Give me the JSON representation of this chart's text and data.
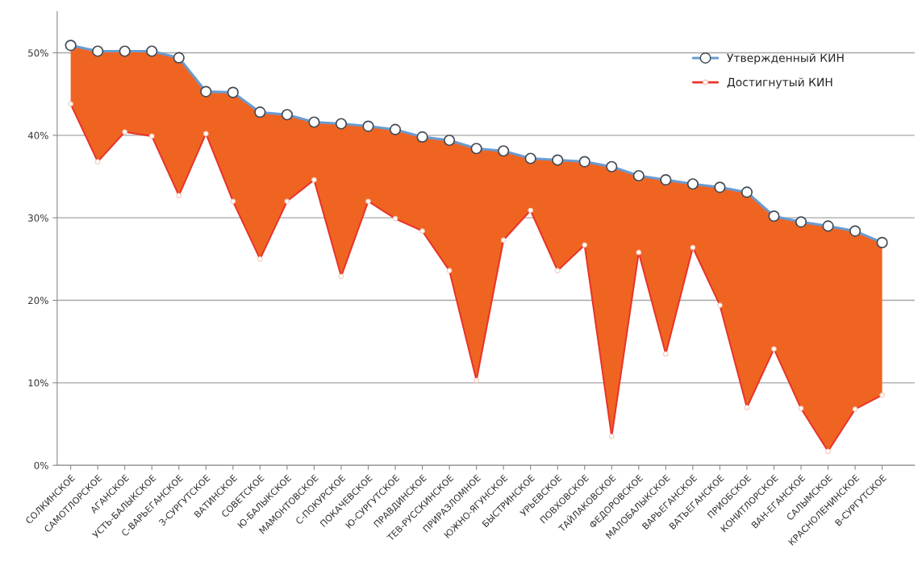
{
  "chart_data": {
    "type": "line",
    "categories": [
      "СОЛКИНСКОЕ",
      "САМОТЛОРСКОЕ",
      "АГАНСКОЕ",
      "УСТЬ-БАЛЫКСКОЕ",
      "С-ВАРЬЕГАНСКОЕ",
      "З-СУРГУТСКОЕ",
      "ВАТИНСКОЕ",
      "СОВЕТСКОЕ",
      "Ю-БАЛЫКСКОЕ",
      "МАМОНТОВСКОЕ",
      "С-ПОКУРСКОЕ",
      "ПОКАЧЕВСКОЕ",
      "Ю-СУРГУТСКОЕ",
      "ПРАВДИНСКОЕ",
      "ТЕВ-РУССКИНСКОЕ",
      "ПРИРАЗЛОМНОЕ",
      "ЮЖНО-ЯГУНСКОЕ",
      "БЫСТРИНСКОЕ",
      "УРЬЕВСКОЕ",
      "ПОВХОВСКОЕ",
      "ТАЙЛАКОВСКОЕ",
      "ФЕДОРОВСКОЕ",
      "МАЛОБАЛЫКСКОЕ",
      "ВАРЬЕГАНСКОЕ",
      "ВАТЬЕГАНСКОЕ",
      "ПРИОБСКОЕ",
      "КОНИТЛОРСКОЕ",
      "ВАН-ЕГАНСКОЕ",
      "САЛЫМСКОЕ",
      "КРАСНОЛЕНИНСКОЕ",
      "В-СУРГУТСКОЕ"
    ],
    "series": [
      {
        "name": "Утвержденный КИН",
        "type": "line",
        "color": "#6a9bd1",
        "marker": "circle",
        "values": [
          50.9,
          50.2,
          50.2,
          50.2,
          49.4,
          45.3,
          45.2,
          42.8,
          42.5,
          41.6,
          41.4,
          41.1,
          40.7,
          39.8,
          39.4,
          38.4,
          38.1,
          37.2,
          37.0,
          36.8,
          36.2,
          35.1,
          34.6,
          34.1,
          33.7,
          33.1,
          30.2,
          29.5,
          29.0,
          28.4,
          27.0
        ],
        "lower": [
          43.8,
          36.8,
          40.4,
          39.9,
          32.7,
          40.2,
          32.0,
          25.0,
          32.0,
          34.6,
          22.9,
          32.0,
          29.9,
          28.4,
          23.6,
          10.3,
          27.3,
          30.9,
          23.6,
          26.7,
          3.5,
          25.8,
          13.5,
          26.4,
          19.4,
          7.0,
          14.1,
          6.9,
          1.7,
          6.8,
          8.5
        ],
        "upper": [
          50.9,
          50.2,
          50.2,
          50.2,
          49.4,
          45.3,
          45.2,
          42.8,
          42.5,
          41.6,
          41.4,
          41.1,
          40.7,
          39.8,
          39.4,
          38.4,
          38.1,
          37.2,
          37.0,
          36.8,
          36.2,
          35.1,
          34.6,
          34.1,
          33.7,
          33.1,
          30.2,
          29.5,
          29.0,
          28.4,
          27.0
        ]
      },
      {
        "name": "Достигнутый КИН",
        "type": "line",
        "color": "#e8352a",
        "marker": "circle",
        "values": [
          43.8,
          36.8,
          40.4,
          39.9,
          32.7,
          40.2,
          32.0,
          25.0,
          32.0,
          34.6,
          22.9,
          32.0,
          29.9,
          28.4,
          23.6,
          10.3,
          27.3,
          30.9,
          23.6,
          26.7,
          3.5,
          25.8,
          13.5,
          26.4,
          19.4,
          7.0,
          14.1,
          6.9,
          1.7,
          6.8,
          8.5
        ]
      }
    ],
    "ylim": [
      0,
      55
    ],
    "yticks": [
      {
        "value": 0,
        "label": "0%"
      },
      {
        "value": 10,
        "label": "10%"
      },
      {
        "value": 20,
        "label": "20%"
      },
      {
        "value": 30,
        "label": "30%"
      },
      {
        "value": 40,
        "label": "40%"
      },
      {
        "value": 50,
        "label": "50%"
      }
    ],
    "grid": "y",
    "legend": "top right"
  }
}
